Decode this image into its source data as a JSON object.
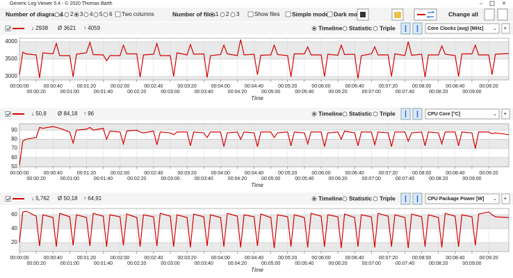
{
  "window": {
    "title": "Generic Log Viewer 5.4 - © 2020 Thomas Barth",
    "diagrams_label": "Number of diagrams",
    "diagram_options": [
      "1",
      "2",
      "3",
      "4",
      "5",
      "6"
    ],
    "two_columns": "Two columns",
    "files_label": "Number of files",
    "file_options": [
      "1",
      "2",
      "3"
    ],
    "show_files": "Show files",
    "simple_mode": "Simple mode",
    "dark_mode": "Dark mod",
    "change_all": "Change all"
  },
  "view_options": [
    "Timeline",
    "Statistic",
    "Triple"
  ],
  "time_axis": {
    "label": "Time",
    "xlim": [
      0,
      584
    ],
    "x": [
      0,
      4,
      8,
      20,
      24,
      28,
      40,
      44,
      48,
      60,
      64,
      68,
      80,
      84,
      88,
      100,
      104,
      108,
      120,
      124,
      128,
      140,
      144,
      148,
      160,
      164,
      168,
      180,
      184,
      188,
      200,
      204,
      208,
      220,
      224,
      228,
      240,
      244,
      248,
      260,
      264,
      268,
      280,
      284,
      288,
      300,
      304,
      308,
      320,
      324,
      328,
      340,
      344,
      348,
      360,
      364,
      368,
      380,
      384,
      388,
      400,
      404,
      408,
      420,
      424,
      428,
      440,
      444,
      448,
      460,
      464,
      468,
      480,
      484,
      488,
      500,
      504,
      508,
      520,
      524,
      528,
      540,
      544,
      548,
      560,
      564,
      568,
      584
    ],
    "xticks": [
      {
        "value": 0,
        "label": "00:00:00"
      },
      {
        "value": 20,
        "label": "00:00:20"
      },
      {
        "value": 40,
        "label": "00:00:40"
      },
      {
        "value": 60,
        "label": "00:01:00"
      },
      {
        "value": 80,
        "label": "00:01:20"
      },
      {
        "value": 100,
        "label": "00:01:40"
      },
      {
        "value": 120,
        "label": "00:02:00"
      },
      {
        "value": 140,
        "label": "00:02:20"
      },
      {
        "value": 160,
        "label": "00:02:40"
      },
      {
        "value": 180,
        "label": "00:03:00"
      },
      {
        "value": 200,
        "label": "00:03:20"
      },
      {
        "value": 220,
        "label": "00:03:40"
      },
      {
        "value": 240,
        "label": "00:04:00"
      },
      {
        "value": 260,
        "label": "00:04:20"
      },
      {
        "value": 280,
        "label": "00:04:40"
      },
      {
        "value": 300,
        "label": "00:05:00"
      },
      {
        "value": 320,
        "label": "00:05:20"
      },
      {
        "value": 340,
        "label": "00:05:40"
      },
      {
        "value": 360,
        "label": "00:06:00"
      },
      {
        "value": 380,
        "label": "00:06:20"
      },
      {
        "value": 400,
        "label": "00:06:40"
      },
      {
        "value": 420,
        "label": "00:07:00"
      },
      {
        "value": 440,
        "label": "00:07:20"
      },
      {
        "value": 460,
        "label": "00:07:40"
      },
      {
        "value": 480,
        "label": "00:08:00"
      },
      {
        "value": 500,
        "label": "00:08:20"
      },
      {
        "value": 520,
        "label": "00:08:40"
      },
      {
        "value": 540,
        "label": "00:09:00"
      },
      {
        "value": 560,
        "label": "00:09:20"
      }
    ]
  },
  "charts": [
    {
      "type": "line",
      "color": "#d40000",
      "stats": [
        "↓ 2938",
        "Ø 3621",
        "↑ 4059"
      ],
      "channel": "Core Clocks (avg) [MHz]",
      "ylim": [
        2900,
        4100
      ],
      "yticks": [
        3000,
        3500,
        4000
      ],
      "values": [
        3050,
        3700,
        3650,
        3620,
        2960,
        3680,
        3650,
        3950,
        3600,
        3600,
        2990,
        3640,
        3680,
        3980,
        3630,
        3620,
        3450,
        3600,
        3600,
        3900,
        3650,
        3650,
        2980,
        3620,
        3640,
        3950,
        3600,
        3600,
        3000,
        3680,
        3620,
        3920,
        3640,
        3650,
        2970,
        3600,
        3630,
        3900,
        3650,
        3600,
        4059,
        3620,
        3640,
        3050,
        3610,
        3620,
        3900,
        3630,
        3600,
        2990,
        3650,
        3650,
        3850,
        3620,
        3620,
        3000,
        3640,
        3610,
        3900,
        3630,
        3640,
        2938,
        3600,
        3650,
        3850,
        3620,
        3620,
        3000,
        3650,
        3600,
        4000,
        3610,
        3640,
        2980,
        3620,
        3620,
        3880,
        3640,
        3600,
        3000,
        3650,
        3650,
        3900,
        3620,
        3620,
        3050,
        3640,
        3660
      ]
    },
    {
      "type": "line",
      "color": "#d40000",
      "stats": [
        "↓ 50,8",
        "Ø 84,18",
        "↑ 96"
      ],
      "channel": "CPU Core [°C]",
      "ylim": [
        50,
        97
      ],
      "yticks": [
        50,
        60,
        70,
        80,
        90
      ],
      "values": [
        52,
        78,
        80,
        82,
        93,
        92,
        94,
        93,
        92,
        88,
        76,
        90,
        91,
        93,
        90,
        92,
        80,
        89,
        88,
        75,
        89,
        90,
        88,
        87,
        89,
        74,
        88,
        87,
        85,
        88,
        88,
        73,
        88,
        87,
        82,
        88,
        88,
        72,
        87,
        88,
        80,
        88,
        87,
        72,
        88,
        88,
        82,
        87,
        88,
        73,
        88,
        87,
        75,
        88,
        88,
        72,
        87,
        88,
        80,
        89,
        87,
        73,
        88,
        88,
        74,
        88,
        87,
        72,
        88,
        88,
        78,
        87,
        88,
        73,
        88,
        87,
        75,
        88,
        88,
        73,
        88,
        87,
        70,
        88,
        88,
        86,
        87,
        85
      ]
    },
    {
      "type": "line",
      "color": "#d40000",
      "stats": [
        "↓ 5,762",
        "Ø 50,18",
        "↑ 64,91"
      ],
      "channel": "CPU Package Power [W]",
      "ylim": [
        7,
        69
      ],
      "yticks": [
        20,
        40,
        60
      ],
      "values": [
        20,
        64,
        65,
        58,
        15,
        60,
        56,
        14,
        62,
        57,
        16,
        60,
        56,
        15,
        62,
        58,
        14,
        60,
        57,
        16,
        61,
        56,
        14,
        60,
        57,
        15,
        62,
        58,
        14,
        60,
        56,
        13,
        61,
        57,
        15,
        60,
        56,
        14,
        62,
        58,
        13,
        60,
        57,
        15,
        61,
        56,
        12,
        60,
        57,
        14,
        60,
        56,
        13,
        62,
        58,
        14,
        60,
        57,
        12,
        61,
        56,
        14,
        60,
        57,
        13,
        62,
        58,
        14,
        60,
        56,
        12,
        61,
        57,
        14,
        60,
        56,
        13,
        62,
        58,
        14,
        60,
        57,
        16,
        61,
        64,
        60,
        57,
        56
      ]
    }
  ]
}
